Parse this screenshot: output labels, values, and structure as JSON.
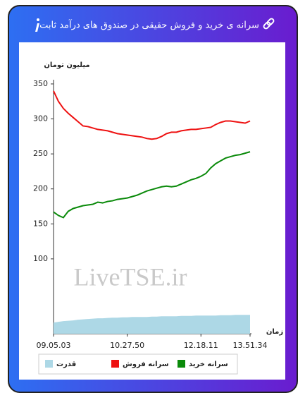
{
  "chart_data": {
    "type": "line",
    "title": "سرانه ی خرید و فروش حقیقی در صندوق های درآمد ثابت",
    "watermark": "LiveTSE.ir",
    "y_label": "میلیون تومان",
    "x_label": "زمان",
    "categories": [
      "09.05.03",
      null,
      null,
      null,
      null,
      null,
      null,
      null,
      null,
      null,
      null,
      null,
      null,
      null,
      null,
      "10.27.50",
      null,
      null,
      null,
      null,
      null,
      null,
      null,
      null,
      null,
      null,
      null,
      null,
      null,
      null,
      "12.18.11",
      null,
      null,
      null,
      null,
      null,
      null,
      null,
      null,
      null,
      "13.51.34"
    ],
    "series": [
      {
        "name": "سرانه خرید",
        "color": "#0a8a0a",
        "kind": "line",
        "values": [
          167,
          162,
          159,
          168,
          172,
          174,
          176,
          177,
          178,
          181,
          180,
          182,
          183,
          185,
          186,
          187,
          189,
          191,
          194,
          197,
          199,
          201,
          203,
          204,
          203,
          204,
          207,
          210,
          213,
          215,
          218,
          222,
          230,
          236,
          240,
          244,
          246,
          248,
          249,
          251,
          253
        ]
      },
      {
        "name": "سرانه فروش",
        "color": "#ee1111",
        "kind": "line",
        "values": [
          340,
          325,
          315,
          308,
          302,
          296,
          290,
          289,
          287,
          285,
          284,
          283,
          281,
          279,
          278,
          277,
          276,
          275,
          274,
          272,
          271,
          272,
          275,
          279,
          281,
          281,
          283,
          284,
          285,
          285,
          286,
          287,
          288,
          292,
          295,
          297,
          297,
          296,
          295,
          294,
          297
        ]
      },
      {
        "name": "قدرت",
        "color": "#add8e6",
        "kind": "area",
        "values": [
          9,
          10,
          11,
          11.5,
          12,
          13,
          13.5,
          14,
          14.5,
          15,
          15,
          15.5,
          16,
          16,
          16.5,
          16.5,
          17,
          17,
          17,
          17,
          17.5,
          17.5,
          18,
          18,
          18,
          18,
          18.5,
          18.5,
          18.5,
          19,
          19,
          19,
          19,
          19,
          19.5,
          19.5,
          19.5,
          20,
          20,
          20,
          20
        ]
      }
    ],
    "ylim": [
      -7,
      356
    ],
    "yticks": [
      100,
      150,
      200,
      250,
      300,
      350
    ],
    "grid": false
  }
}
